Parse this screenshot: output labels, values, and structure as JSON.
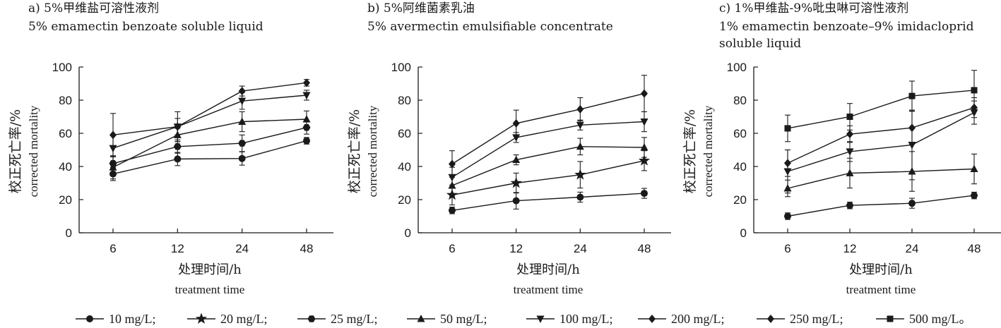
{
  "legend": [
    {
      "name": "10 mg/L;",
      "marker": "circle"
    },
    {
      "name": "20 mg/L;",
      "marker": "star"
    },
    {
      "name": "25 mg/L;",
      "marker": "hexagon"
    },
    {
      "name": "50 mg/L;",
      "marker": "triangle-up"
    },
    {
      "name": "100 mg/L;",
      "marker": "triangle-down"
    },
    {
      "name": "200 mg/L;",
      "marker": "diamond"
    },
    {
      "name": "250 mg/L;",
      "marker": "diamond"
    },
    {
      "name": "500 mg/L。",
      "marker": "square"
    }
  ],
  "chart_data": [
    {
      "type": "line",
      "title": "a) 5%甲维盐可溶性液剂",
      "subtitle": "5% emamectin benzoate soluble liquid",
      "ylabel": "校正死亡率/%",
      "ylabel_en": "corrected mortality",
      "xlabel": "处理时间/h",
      "xlabel_en": "treatment time",
      "categories": [
        "6",
        "12",
        "24",
        "48"
      ],
      "yticks": [
        "0",
        "20",
        "40",
        "60",
        "80",
        "100"
      ],
      "ylim": [
        0,
        100
      ],
      "series": [
        {
          "name": "10 mg/L",
          "marker": "circle",
          "values": [
            35.5,
            44.5,
            44.8,
            55.5
          ],
          "errors": [
            4,
            4,
            4,
            2
          ]
        },
        {
          "name": "25 mg/L",
          "marker": "hexagon",
          "values": [
            41.8,
            52,
            54,
            63.5
          ],
          "errors": [
            4,
            4,
            5,
            4
          ]
        },
        {
          "name": "50 mg/L",
          "marker": "triangle-up",
          "values": [
            39.5,
            59,
            67,
            68.5
          ],
          "errors": [
            7,
            4,
            6,
            5
          ]
        },
        {
          "name": "100 mg/L",
          "marker": "triangle-down",
          "values": [
            51,
            64,
            79.5,
            83
          ],
          "errors": [
            8,
            5,
            5,
            3
          ]
        },
        {
          "name": "250 mg/L",
          "marker": "diamond",
          "values": [
            59,
            64,
            85.5,
            90.5
          ],
          "errors": [
            13,
            9,
            3,
            2
          ]
        }
      ]
    },
    {
      "type": "line",
      "title": "b) 5%阿维菌素乳油",
      "subtitle": "5% avermectin emulsifiable concentrate",
      "ylabel": "校正死亡率/%",
      "ylabel_en": "corrected mortality",
      "xlabel": "处理时间/h",
      "xlabel_en": "treatment time",
      "categories": [
        "6",
        "12",
        "24",
        "48"
      ],
      "yticks": [
        "0",
        "20",
        "40",
        "60",
        "80",
        "100"
      ],
      "ylim": [
        0,
        100
      ],
      "series": [
        {
          "name": "10 mg/L",
          "marker": "circle",
          "values": [
            13.5,
            19.3,
            21.5,
            23.8
          ],
          "errors": [
            2,
            5,
            3,
            3
          ]
        },
        {
          "name": "20 mg/L",
          "marker": "star",
          "values": [
            22.8,
            30,
            35,
            43.5
          ],
          "errors": [
            6,
            6,
            8,
            6
          ]
        },
        {
          "name": "50 mg/L",
          "marker": "triangle-up",
          "values": [
            28.5,
            44,
            52,
            51.5
          ],
          "errors": [
            6,
            3,
            5,
            6
          ]
        },
        {
          "name": "100 mg/L",
          "marker": "triangle-down",
          "values": [
            33.5,
            57.5,
            65,
            67
          ],
          "errors": [
            6,
            3,
            3,
            6
          ]
        },
        {
          "name": "200 mg/L",
          "marker": "diamond",
          "values": [
            41.5,
            66,
            74.5,
            84
          ],
          "errors": [
            8,
            8,
            7,
            11
          ]
        }
      ]
    },
    {
      "type": "line",
      "title": "c) 1%甲维盐-9%吡虫啉可溶性液剂",
      "subtitle": "1% emamectin benzoate–9% imidacloprid",
      "subtitle2": "soluble liquid",
      "ylabel": "校正死亡率/%",
      "ylabel_en": "corrected mortality",
      "xlabel": "处理时间/h",
      "xlabel_en": "treatment time",
      "categories": [
        "6",
        "12",
        "24",
        "48"
      ],
      "yticks": [
        "0",
        "20",
        "40",
        "60",
        "80",
        "100"
      ],
      "ylim": [
        0,
        100
      ],
      "series": [
        {
          "name": "10 mg/L",
          "marker": "circle",
          "values": [
            10,
            16.5,
            17.8,
            22.5
          ],
          "errors": [
            2,
            2,
            3,
            2
          ]
        },
        {
          "name": "50 mg/L",
          "marker": "triangle-up",
          "values": [
            26.8,
            36,
            37,
            38.5
          ],
          "errors": [
            5,
            9,
            12,
            9
          ]
        },
        {
          "name": "100 mg/L",
          "marker": "triangle-down",
          "values": [
            37,
            49,
            53,
            72.5
          ],
          "errors": [
            13,
            6,
            21,
            7
          ]
        },
        {
          "name": "200 mg/L",
          "marker": "diamond",
          "values": [
            42,
            59.5,
            63.3,
            75.5
          ],
          "errors": [
            8,
            5,
            10,
            6
          ]
        },
        {
          "name": "500 mg/L",
          "marker": "square",
          "values": [
            63,
            70,
            82.5,
            86
          ],
          "errors": [
            8,
            8,
            9,
            12
          ]
        }
      ]
    }
  ]
}
